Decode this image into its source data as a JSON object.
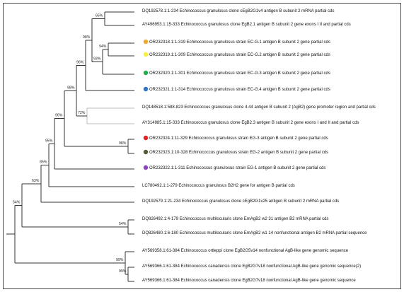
{
  "tree": {
    "taxa": [
      {
        "id": "t1",
        "label": "DQ192578.1:1-234 Echinococcus granulosus clone cEgB2G1v4 antigen B subunit 2 mRNA partial cds",
        "marker": null
      },
      {
        "id": "t2",
        "label": "AY496953.1:15-333 Echinococcus granulosus clone EgB2.1 antigen B subunit 2 gene exons I II and partial cds",
        "marker": null
      },
      {
        "id": "t3",
        "label": "OR232318.1:1-319 Echinococcus granulosus strain EC-G.1 antigen B subunit 2 gene partial cds",
        "marker": "#f0a830"
      },
      {
        "id": "t4",
        "label": "OR232319.1:1-309 Echinococcus granulosus strain EC-G.2 antigen B subunit 2 gene partial cds",
        "marker": "#f7f040"
      },
      {
        "id": "t5",
        "label": "OR232320.1:1-301 Echinococcus granulosus strain EC-G.3 antigen B subunit 2 gene partial cds",
        "marker": "#22b04a"
      },
      {
        "id": "t6",
        "label": "OR232321.1:1-314 Echinococcus granulosus strain EC-G.4 antigen B subunit 2 gene partial cds",
        "marker": "#2b78c8"
      },
      {
        "id": "t7",
        "label": "DQ148518.1:588-823 Echinococcus granulosus clone 4.44 antigen B subunit 2 (AgB2) gene promoter region and partial cds",
        "marker": null
      },
      {
        "id": "t8",
        "label": "AY314985.1:15-333 Echinococcus granulosus clone EgB2.3 antigen B subunit 2 gene exons I and II and partial cds",
        "marker": null
      },
      {
        "id": "t9",
        "label": "OR232324.1:11-329 Echinococcus granulosus strain EG-3 antigen B subunit 2 gene partial cds",
        "marker": "#e02424"
      },
      {
        "id": "t10",
        "label": "OR232323.1:10-328 Echinococcus granulosus strain EG-2 antigen B subunit 2 gene partial cds",
        "marker": "#5a5a3a"
      },
      {
        "id": "t11",
        "label": "OR232322.1:1-311 Echinococcus granulosus strain EG-1 antigen B subunit 2 gene partial cds",
        "marker": "#8e44c0"
      },
      {
        "id": "t12",
        "label": "LC780492.1:1-279 Echinococcus granulosus B2H2 gene for antigen B partial cds",
        "marker": null
      },
      {
        "id": "t13",
        "label": "DQ192579.1:21-234 Echinococcus granulosus clone cEgB2G1v25 antigen B subunit 2 mRNA partial cds",
        "marker": null
      },
      {
        "id": "t14",
        "label": "DQ826492.1:4-179 Echinococcus multilocularis clone EmAgB2 w2 31 antigen B2 mRNA partial cds",
        "marker": null
      },
      {
        "id": "t15",
        "label": "DQ826480.1:6-180 Echinococcus multilocularis clone EmAgB2 w1 14 nonfunctional antigen B2 mRNA partial sequence",
        "marker": null
      },
      {
        "id": "t16",
        "label": "AY569358.1:61-384 Echinococcus ortleppi clone EgB2G5v14 nonfunctional AgB-like gene genomic sequence",
        "marker": null
      },
      {
        "id": "t17",
        "label": "AY569366.1:61-384 Echinococcus canadensis clone EgB2G7v18 nonfunctional AgB-like gene genomic sequence(2)",
        "marker": null
      },
      {
        "id": "t18",
        "label": "AY569366.1:61-384 Echinococcus canadensis clone EgB2G7v18 nonfunctional AgB-like gene genomic sequence",
        "marker": null
      }
    ],
    "support_values": [
      {
        "id": "s1",
        "text": "65%"
      },
      {
        "id": "s2",
        "text": "98%"
      },
      {
        "id": "s3",
        "text": "94%"
      },
      {
        "id": "s4",
        "text": "93%"
      },
      {
        "id": "s5",
        "text": "96%"
      },
      {
        "id": "s6",
        "text": "98%"
      },
      {
        "id": "s7",
        "text": "72%"
      },
      {
        "id": "s8",
        "text": "98%"
      },
      {
        "id": "s9",
        "text": "96%"
      },
      {
        "id": "s10",
        "text": "95%"
      },
      {
        "id": "s11",
        "text": "85%"
      },
      {
        "id": "s12",
        "text": "63%"
      },
      {
        "id": "s13",
        "text": "54%"
      },
      {
        "id": "s14",
        "text": "54%"
      },
      {
        "id": "s15",
        "text": "99%"
      },
      {
        "id": "s16",
        "text": "99%"
      }
    ]
  }
}
